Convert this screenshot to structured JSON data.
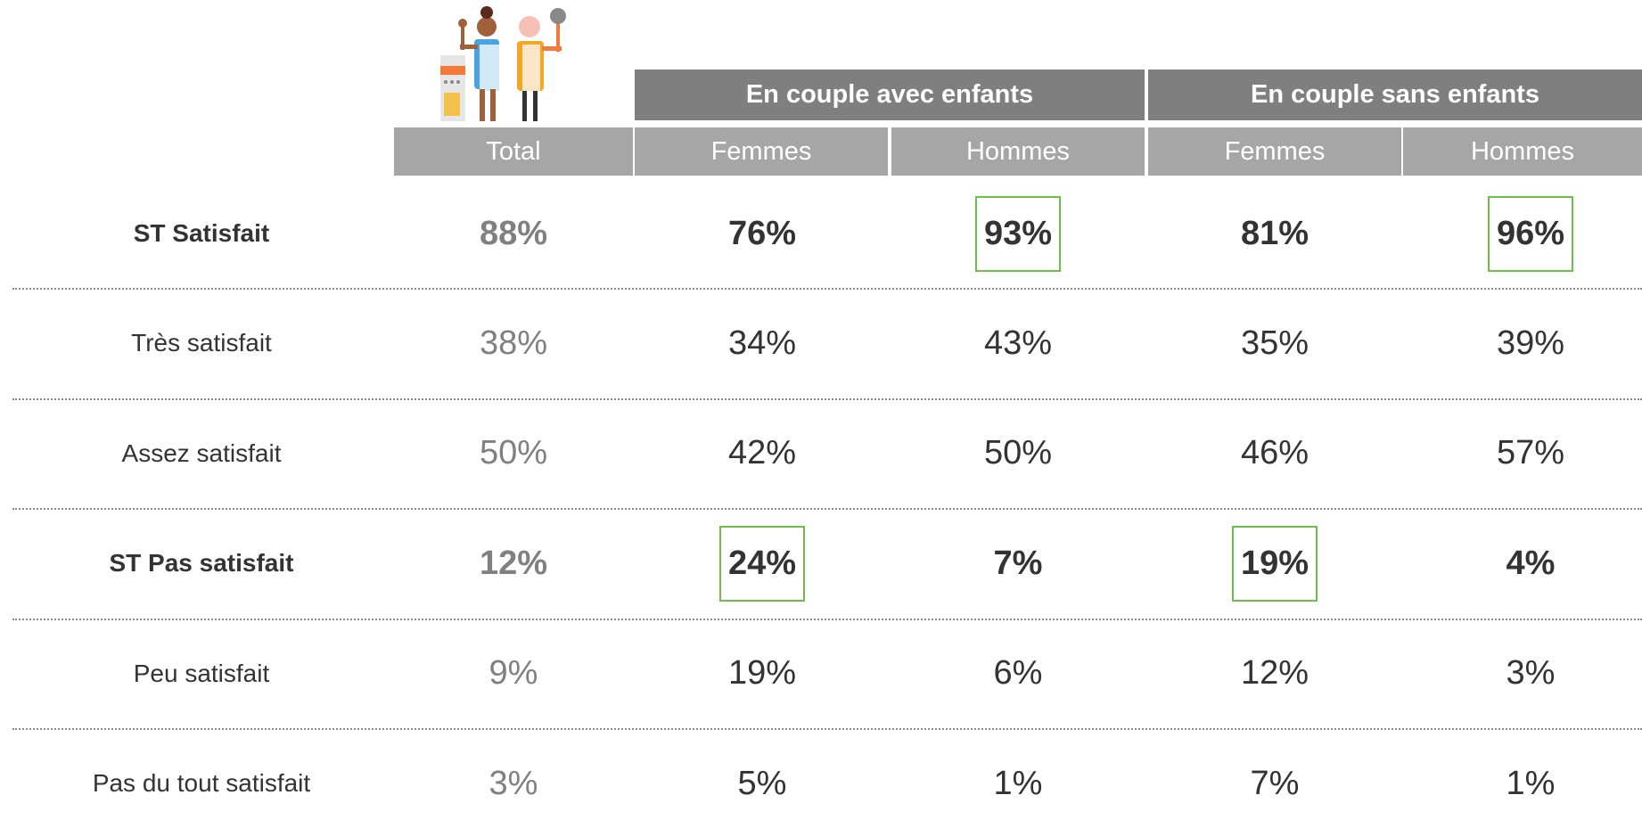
{
  "table": {
    "group_headers": [
      {
        "label": "En couple avec enfants",
        "columns": [
          1,
          2
        ]
      },
      {
        "label": "En couple sans enfants",
        "columns": [
          3,
          4
        ]
      }
    ],
    "columns": [
      "Total",
      "Femmes",
      "Hommes",
      "Femmes",
      "Hommes"
    ],
    "rows": [
      {
        "label": "ST Satisfait",
        "bold": true,
        "values": [
          "88%",
          "76%",
          "93%",
          "81%",
          "96%"
        ],
        "highlighted": [
          2,
          4
        ]
      },
      {
        "label": "Très satisfait",
        "bold": false,
        "values": [
          "38%",
          "34%",
          "43%",
          "35%",
          "39%"
        ],
        "highlighted": []
      },
      {
        "label": "Assez satisfait",
        "bold": false,
        "values": [
          "50%",
          "42%",
          "50%",
          "46%",
          "57%"
        ],
        "highlighted": []
      },
      {
        "label": "ST Pas satisfait",
        "bold": true,
        "values": [
          "12%",
          "24%",
          "7%",
          "19%",
          "4%"
        ],
        "highlighted": [
          1,
          3
        ]
      },
      {
        "label": "Peu satisfait",
        "bold": false,
        "values": [
          "9%",
          "19%",
          "6%",
          "12%",
          "3%"
        ],
        "highlighted": []
      },
      {
        "label": "Pas du tout satisfait",
        "bold": false,
        "values": [
          "3%",
          "5%",
          "1%",
          "7%",
          "1%"
        ],
        "highlighted": []
      }
    ]
  }
}
